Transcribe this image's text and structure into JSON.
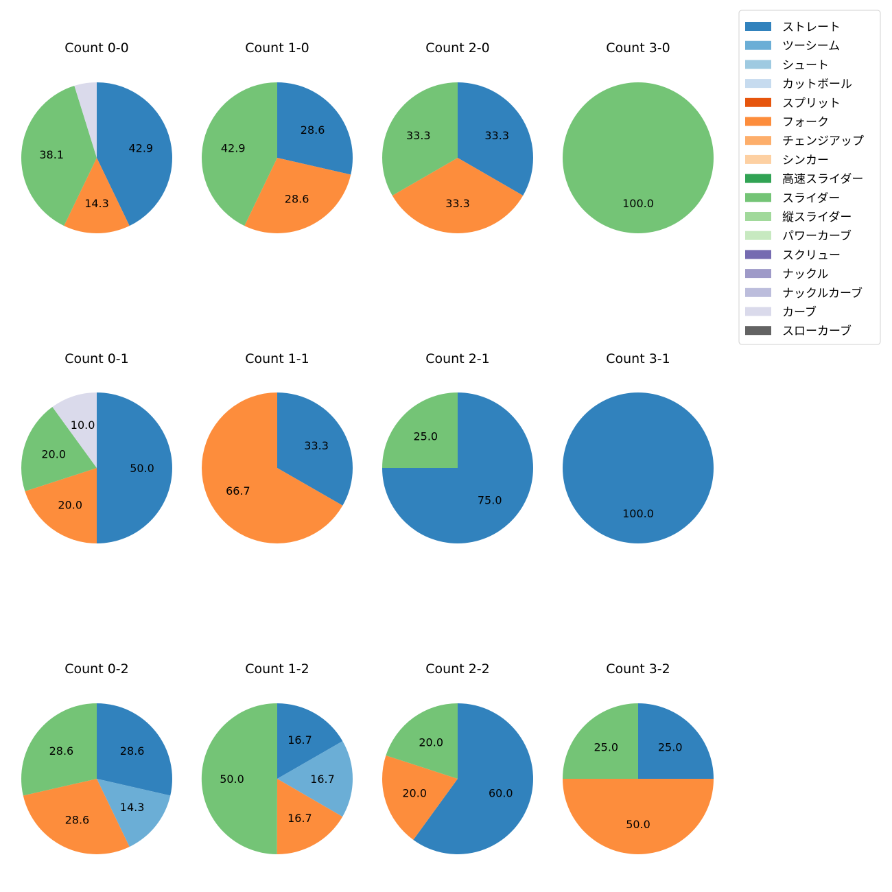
{
  "chart_data": {
    "type": "pie",
    "legend": {
      "placement": "top-right",
      "entries": [
        {
          "name": "ストレート",
          "color": "#3182bd"
        },
        {
          "name": "ツーシーム",
          "color": "#6baed6"
        },
        {
          "name": "シュート",
          "color": "#9ecae1"
        },
        {
          "name": "カットボール",
          "color": "#c6dbef"
        },
        {
          "name": "スプリット",
          "color": "#e6550d"
        },
        {
          "name": "フォーク",
          "color": "#fd8d3c"
        },
        {
          "name": "チェンジアップ",
          "color": "#fdae6b"
        },
        {
          "name": "シンカー",
          "color": "#fdd0a2"
        },
        {
          "name": "高速スライダー",
          "color": "#31a354"
        },
        {
          "name": "スライダー",
          "color": "#74c476"
        },
        {
          "name": "縦スライダー",
          "color": "#a1d99b"
        },
        {
          "name": "パワーカーブ",
          "color": "#c7e9c0"
        },
        {
          "name": "スクリュー",
          "color": "#756bb1"
        },
        {
          "name": "ナックル",
          "color": "#9e9ac8"
        },
        {
          "name": "ナックルカーブ",
          "color": "#bcbddc"
        },
        {
          "name": "カーブ",
          "color": "#dadaeb"
        },
        {
          "name": "スローカーブ",
          "color": "#636363"
        }
      ]
    },
    "pies": [
      {
        "title": "Count 0-0",
        "slices": [
          {
            "name": "ストレート",
            "value": 42.9,
            "label": "42.9"
          },
          {
            "name": "フォーク",
            "value": 14.3,
            "label": "14.3"
          },
          {
            "name": "スライダー",
            "value": 38.1,
            "label": "38.1"
          },
          {
            "name": "カーブ",
            "value": 4.8,
            "label": ""
          }
        ]
      },
      {
        "title": "Count 1-0",
        "slices": [
          {
            "name": "ストレート",
            "value": 28.6,
            "label": "28.6"
          },
          {
            "name": "フォーク",
            "value": 28.6,
            "label": "28.6"
          },
          {
            "name": "スライダー",
            "value": 42.9,
            "label": "42.9"
          }
        ]
      },
      {
        "title": "Count 2-0",
        "slices": [
          {
            "name": "ストレート",
            "value": 33.3,
            "label": "33.3"
          },
          {
            "name": "フォーク",
            "value": 33.3,
            "label": "33.3"
          },
          {
            "name": "スライダー",
            "value": 33.3,
            "label": "33.3"
          }
        ]
      },
      {
        "title": "Count 3-0",
        "slices": [
          {
            "name": "スライダー",
            "value": 100.0,
            "label": "100.0"
          }
        ]
      },
      {
        "title": "Count 0-1",
        "slices": [
          {
            "name": "ストレート",
            "value": 50.0,
            "label": "50.0"
          },
          {
            "name": "フォーク",
            "value": 20.0,
            "label": "20.0"
          },
          {
            "name": "スライダー",
            "value": 20.0,
            "label": "20.0"
          },
          {
            "name": "カーブ",
            "value": 10.0,
            "label": "10.0"
          }
        ]
      },
      {
        "title": "Count 1-1",
        "slices": [
          {
            "name": "ストレート",
            "value": 33.3,
            "label": "33.3"
          },
          {
            "name": "フォーク",
            "value": 66.7,
            "label": "66.7"
          }
        ]
      },
      {
        "title": "Count 2-1",
        "slices": [
          {
            "name": "ストレート",
            "value": 75.0,
            "label": "75.0"
          },
          {
            "name": "スライダー",
            "value": 25.0,
            "label": "25.0"
          }
        ]
      },
      {
        "title": "Count 3-1",
        "slices": [
          {
            "name": "ストレート",
            "value": 100.0,
            "label": "100.0"
          }
        ]
      },
      {
        "title": "Count 0-2",
        "slices": [
          {
            "name": "ストレート",
            "value": 28.6,
            "label": "28.6"
          },
          {
            "name": "ツーシーム",
            "value": 14.3,
            "label": "14.3"
          },
          {
            "name": "フォーク",
            "value": 28.6,
            "label": "28.6"
          },
          {
            "name": "スライダー",
            "value": 28.6,
            "label": "28.6"
          }
        ]
      },
      {
        "title": "Count 1-2",
        "slices": [
          {
            "name": "ストレート",
            "value": 16.7,
            "label": "16.7"
          },
          {
            "name": "ツーシーム",
            "value": 16.7,
            "label": "16.7"
          },
          {
            "name": "フォーク",
            "value": 16.7,
            "label": "16.7"
          },
          {
            "name": "スライダー",
            "value": 50.0,
            "label": "50.0"
          }
        ]
      },
      {
        "title": "Count 2-2",
        "slices": [
          {
            "name": "ストレート",
            "value": 60.0,
            "label": "60.0"
          },
          {
            "name": "フォーク",
            "value": 20.0,
            "label": "20.0"
          },
          {
            "name": "スライダー",
            "value": 20.0,
            "label": "20.0"
          }
        ]
      },
      {
        "title": "Count 3-2",
        "slices": [
          {
            "name": "ストレート",
            "value": 25.0,
            "label": "25.0"
          },
          {
            "name": "フォーク",
            "value": 50.0,
            "label": "50.0"
          },
          {
            "name": "スライダー",
            "value": 25.0,
            "label": "25.0"
          }
        ]
      }
    ]
  }
}
